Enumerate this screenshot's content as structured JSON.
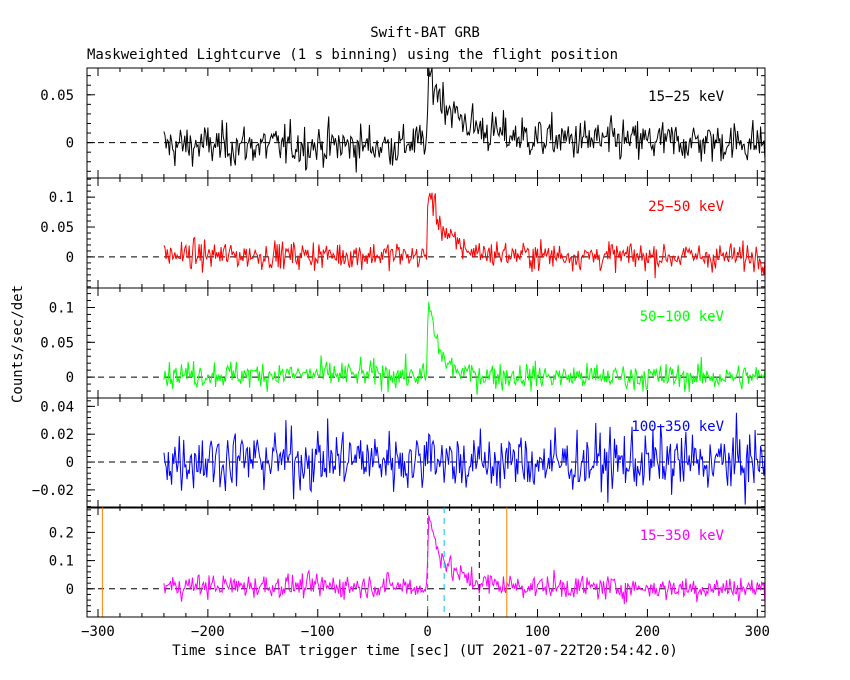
{
  "header": {
    "title": "Swift-BAT GRB",
    "subtitle": "Maskweighted Lightcurve (1 s binning) using the flight position"
  },
  "axes": {
    "ylabel": "Counts/sec/det",
    "xlabel": "Time since BAT trigger time [sec] (UT 2021-07-22T20:54:42.0)",
    "xlim": [
      -310,
      307
    ],
    "xticks": [
      -300,
      -200,
      -100,
      0,
      100,
      200,
      300
    ],
    "xtick_labels": [
      "−300",
      "−200",
      "−100",
      "0",
      "100",
      "200",
      "300"
    ]
  },
  "chart_data": {
    "type": "line",
    "title": "Swift-BAT GRB",
    "subtitle": "Maskweighted Lightcurve (1 s binning) using the flight position",
    "xlabel": "Time since BAT trigger time [sec] (UT 2021-07-22T20:54:42.0)",
    "ylabel": "Counts/sec/det",
    "binning_s": 1,
    "data_range_s": [
      -240,
      307
    ],
    "grid": false,
    "panels": [
      {
        "band": "15−25 keV",
        "color": "#000000",
        "ylim": [
          -0.037,
          0.078
        ],
        "yticks": [
          0,
          0.05
        ],
        "ytick_labels": [
          "0",
          "0.05"
        ],
        "noise_sigma": 0.011,
        "profile": {
          "pre": [
            -0.003,
            0.003
          ],
          "peak_time": 1,
          "peak": 0.062,
          "decay_tau": 22,
          "tail": 0.012,
          "tail_tau": 90
        }
      },
      {
        "band": "25−50 keV",
        "color": "#ff0000",
        "ylim": [
          -0.052,
          0.132
        ],
        "yticks": [
          0,
          0.05,
          0.1
        ],
        "ytick_labels": [
          "0",
          "0.05",
          "0.1"
        ],
        "noise_sigma": 0.0115,
        "profile": {
          "pre": [
            0.003,
            0.004
          ],
          "peak_time": 1,
          "peak": 0.11,
          "decay_tau": 13,
          "tail": 0.008,
          "tail_tau": 90
        }
      },
      {
        "band": "50−100 keV",
        "color": "#00ff00",
        "ylim": [
          -0.03,
          0.128
        ],
        "yticks": [
          0,
          0.05,
          0.1
        ],
        "ytick_labels": [
          "0",
          "0.05",
          "0.1"
        ],
        "noise_sigma": 0.0095,
        "profile": {
          "pre": [
            0.004,
            0.004
          ],
          "peak_time": 1,
          "peak": 0.105,
          "decay_tau": 9,
          "tail": 0.005,
          "tail_tau": 70
        }
      },
      {
        "band": "100−350 keV",
        "color": "#0000ff",
        "ylim": [
          -0.033,
          0.046
        ],
        "yticks": [
          -0.02,
          0,
          0.02,
          0.04
        ],
        "ytick_labels": [
          "−0.02",
          "0",
          "0.02",
          "0.04"
        ],
        "noise_sigma": 0.011,
        "profile": {
          "pre": [
            0.002,
            0.002
          ],
          "peak_time": 1,
          "peak": 0.022,
          "decay_tau": 5,
          "tail": 0.0,
          "tail_tau": 50
        }
      },
      {
        "band": "15−350 keV",
        "color": "#ff00ff",
        "ylim": [
          -0.1,
          0.29
        ],
        "yticks": [
          0,
          0.1,
          0.2
        ],
        "ytick_labels": [
          "0",
          "0.1",
          "0.2"
        ],
        "noise_sigma": 0.021,
        "profile": {
          "pre": [
            0.01,
            0.01
          ],
          "peak_time": 1,
          "peak": 0.225,
          "decay_tau": 14,
          "tail": 0.025,
          "tail_tau": 90
        }
      }
    ],
    "bottom_panel_markers": [
      {
        "x": -296,
        "color": "#ff8000",
        "style": "solid"
      },
      {
        "x": 72,
        "color": "#ff8000",
        "style": "solid"
      },
      {
        "x": 0,
        "color": "#00aa00",
        "style": "dashed"
      },
      {
        "x": 15,
        "color": "#00c0ff",
        "style": "dashed"
      },
      {
        "x": 47,
        "color": "#000000",
        "style": "dashed"
      }
    ]
  }
}
